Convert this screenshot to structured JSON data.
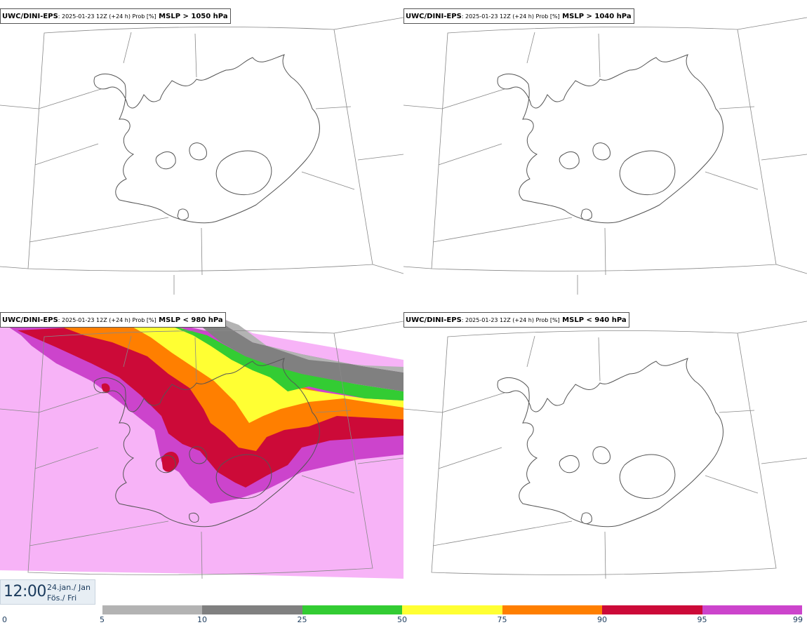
{
  "panels": [
    {
      "model": "UWC/DINI-EPS",
      "meta": ": 2025-01-23 12Z (+24 h) Prob [%]",
      "variable": " MSLP > 1050 hPa"
    },
    {
      "model": "UWC/DINI-EPS",
      "meta": ": 2025-01-23 12Z (+24 h) Prob [%]",
      "variable": " MSLP > 1040 hPa"
    },
    {
      "model": "UWC/DINI-EPS",
      "meta": ": 2025-01-23 12Z (+24 h) Prob [%]",
      "variable": " MSLP < 980 hPa"
    },
    {
      "model": "UWC/DINI-EPS",
      "meta": ": 2025-01-23 12Z (+24 h) Prob [%]",
      "variable": " MSLP < 940 hPa"
    }
  ],
  "time": {
    "hour": "12:00",
    "date_en": "24.jan./ Jan",
    "date_is": "Fös./ Fri"
  },
  "colorbar": {
    "labels": [
      "0",
      "5",
      "10",
      "25",
      "50",
      "75",
      "90",
      "95",
      "99"
    ],
    "colors": [
      "#ffffff",
      "#b3b3b3",
      "#808080",
      "#33cc33",
      "#ffff33",
      "#ff7f00",
      "#cc0a38",
      "#cc44cc",
      "#f7b3f7"
    ]
  },
  "map": {
    "land_color": "#ffffff",
    "coast_color": "#555555",
    "grid_color": "#888888"
  }
}
